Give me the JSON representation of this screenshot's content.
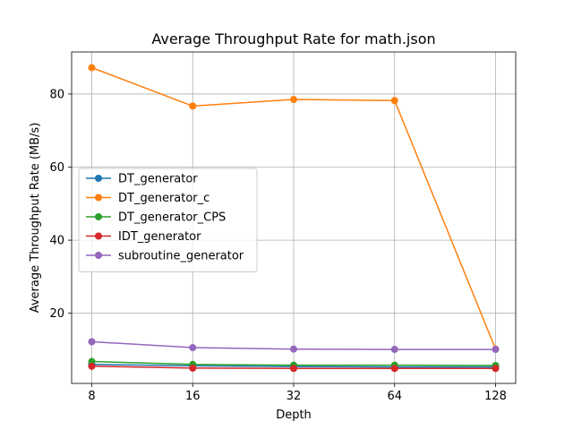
{
  "chart_data": {
    "type": "line",
    "title": "Average Throughput Rate for math.json",
    "xlabel": "Depth",
    "ylabel": "Average Throughput Rate (MB/s)",
    "x_scale": "log2",
    "x": [
      8,
      16,
      32,
      64,
      128
    ],
    "x_tick_labels": [
      "8",
      "16",
      "32",
      "64",
      "128"
    ],
    "y_ticks": [
      20,
      40,
      60,
      80
    ],
    "ylim": [
      0.8,
      91.5
    ],
    "grid": true,
    "legend_position": "center-left",
    "series": [
      {
        "name": "DT_generator",
        "color": "#1f77b4",
        "values": [
          6.0,
          5.6,
          5.4,
          5.3,
          5.3
        ]
      },
      {
        "name": "DT_generator_c",
        "color": "#ff7f0e",
        "values": [
          87.2,
          76.7,
          78.5,
          78.2,
          10.2
        ]
      },
      {
        "name": "DT_generator_CPS",
        "color": "#2ca02c",
        "values": [
          6.8,
          6.0,
          5.8,
          5.8,
          5.7
        ]
      },
      {
        "name": "IDT_generator",
        "color": "#d62728",
        "values": [
          5.5,
          5.0,
          4.9,
          4.9,
          4.9
        ]
      },
      {
        "name": "subroutine_generator",
        "color": "#9467bd",
        "values": [
          12.2,
          10.6,
          10.2,
          10.1,
          10.1
        ]
      }
    ]
  }
}
